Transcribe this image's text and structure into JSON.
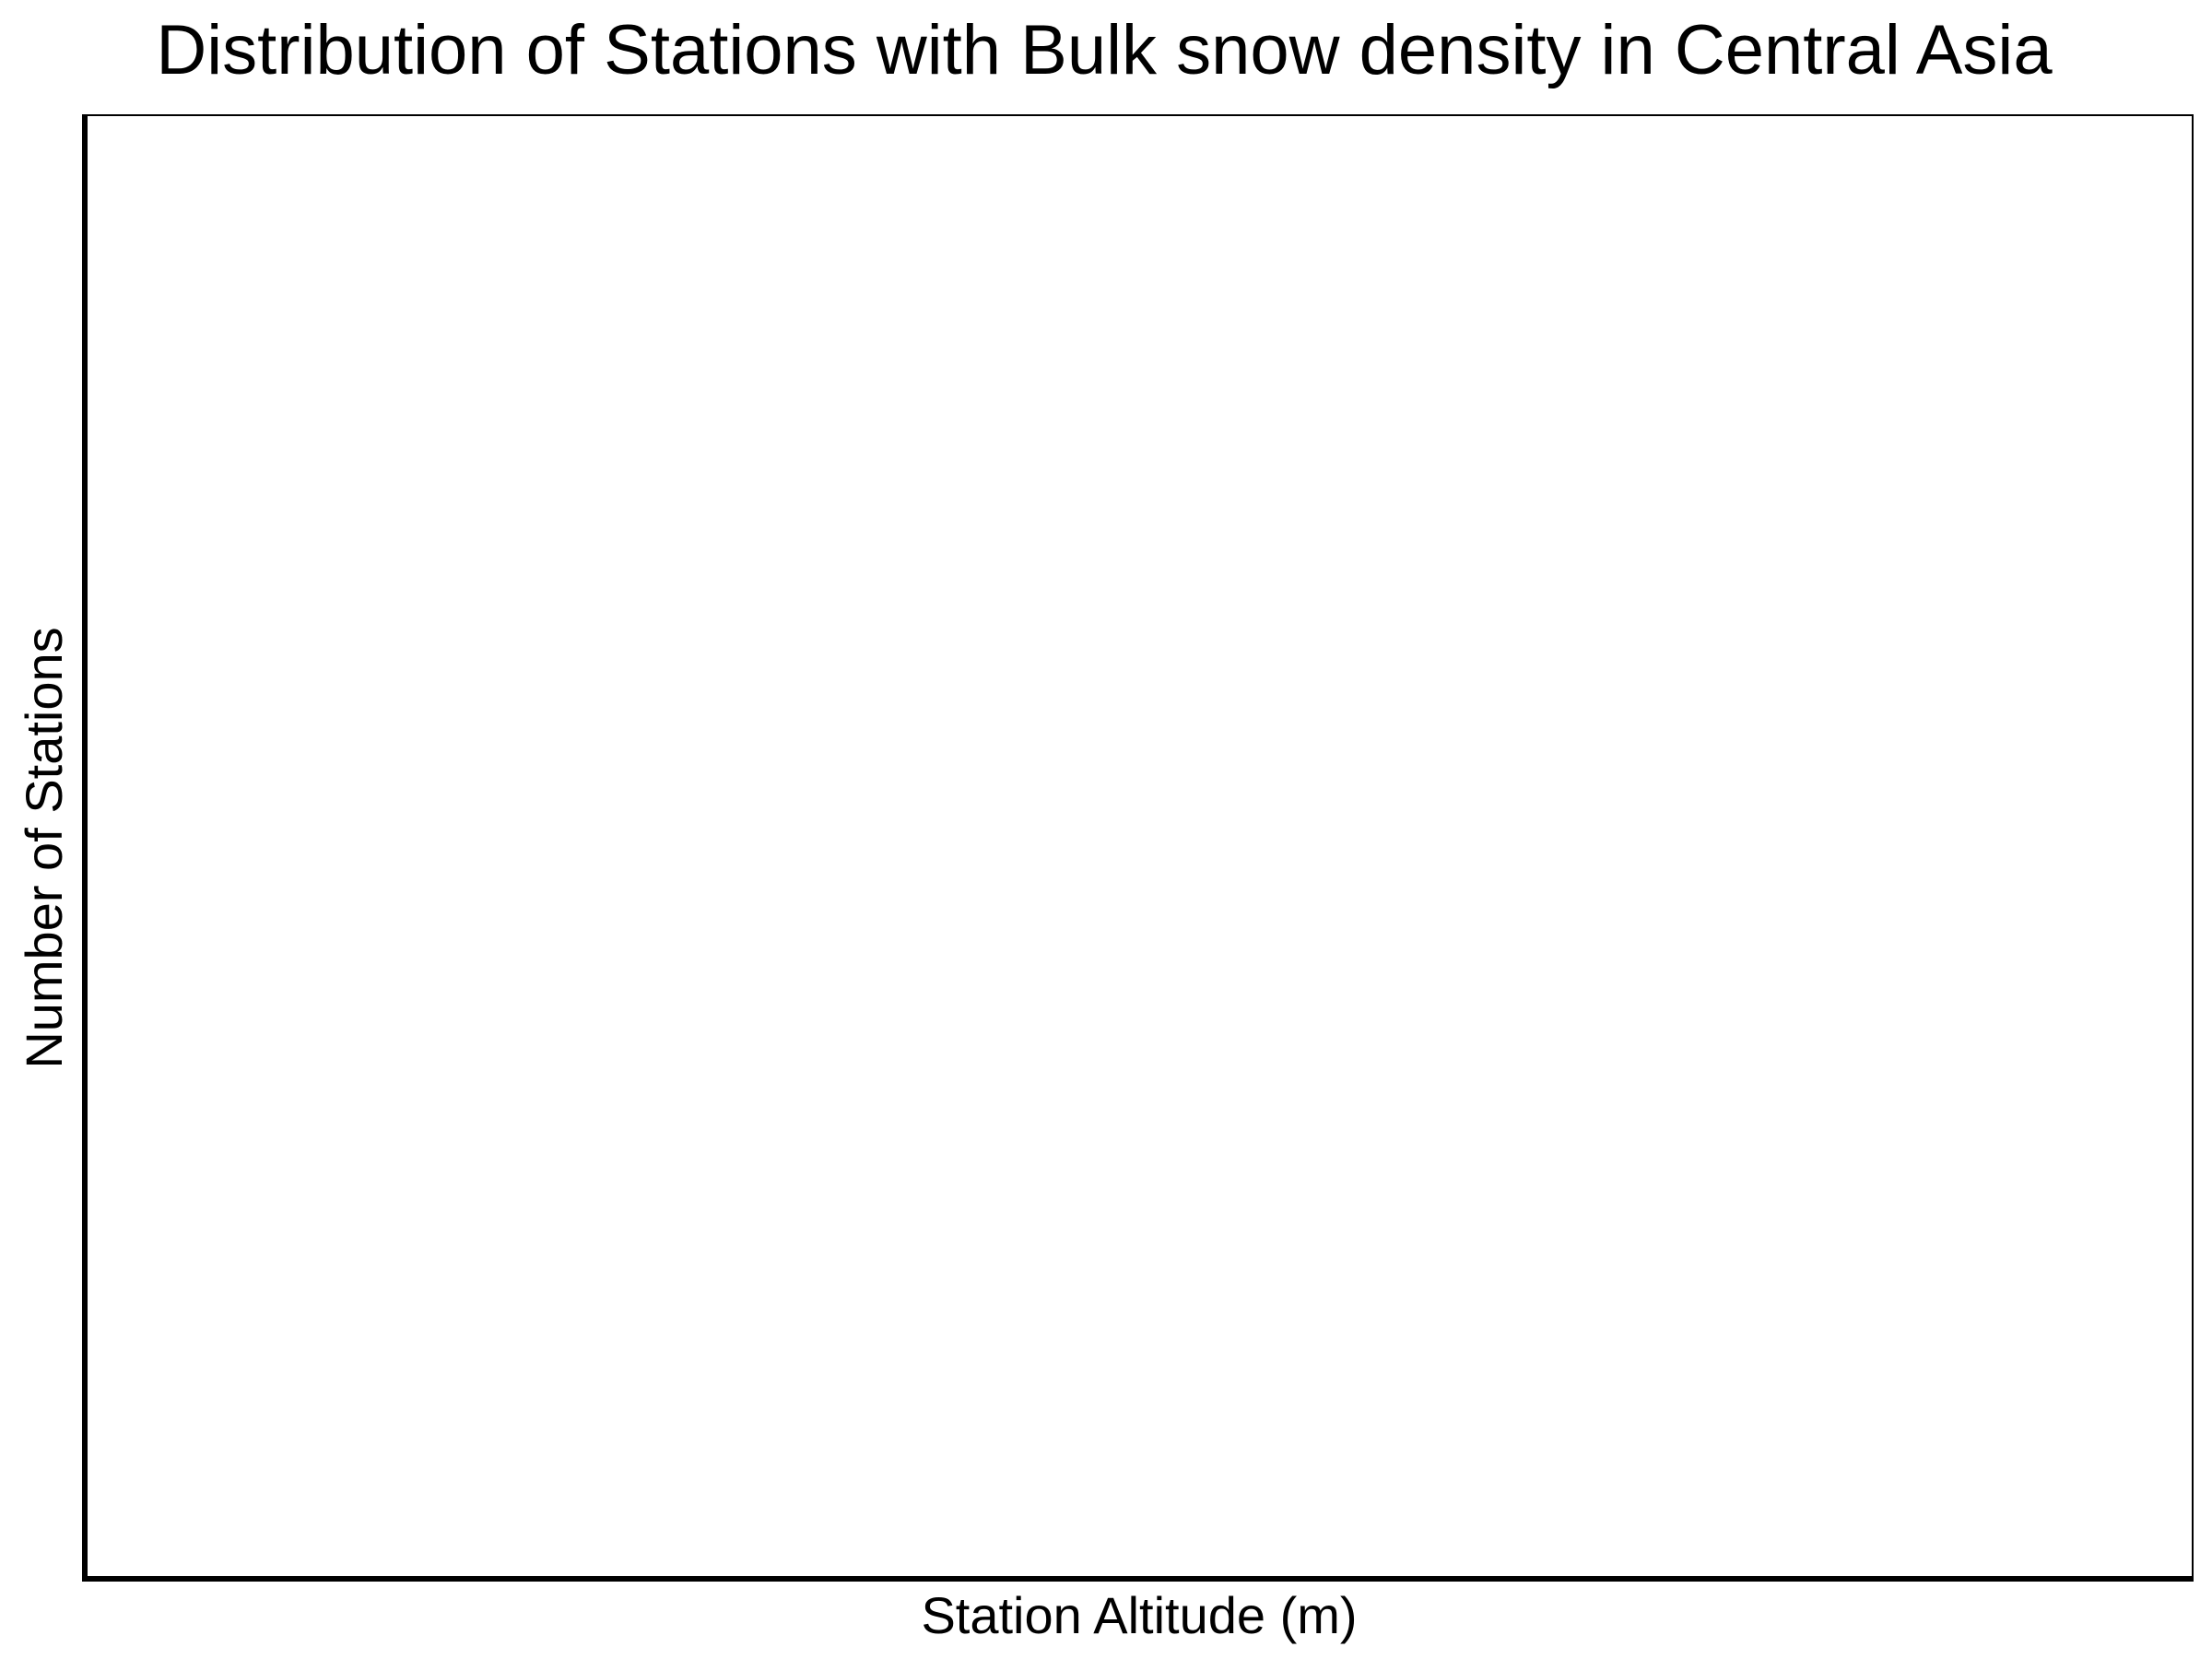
{
  "chart_data": {
    "type": "bar",
    "title": "Distribution of Stations with Bulk snow density in Central Asia",
    "xlabel": "Station Altitude (m)",
    "ylabel": "Number of Stations",
    "categories": [],
    "values": [],
    "grid": false,
    "legend": "none"
  }
}
